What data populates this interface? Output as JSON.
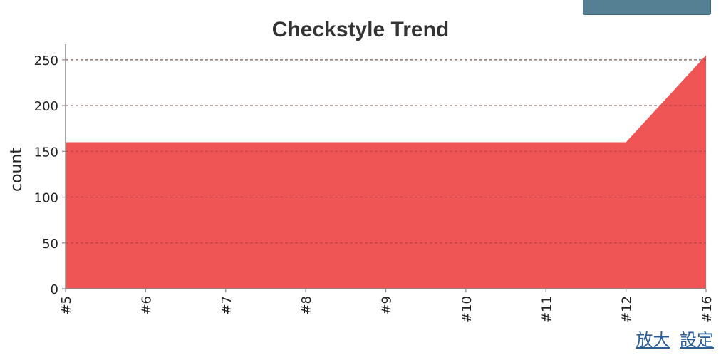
{
  "header": {
    "button_label": ""
  },
  "chart_data": {
    "type": "area",
    "title": "Checkstyle Trend",
    "xlabel": "",
    "ylabel": "count",
    "categories": [
      "#5",
      "#6",
      "#7",
      "#8",
      "#9",
      "#10",
      "#11",
      "#12",
      "#16"
    ],
    "series": [
      {
        "name": "count",
        "values": [
          160,
          160,
          160,
          160,
          160,
          160,
          160,
          160,
          255
        ],
        "color": "#f05555"
      }
    ],
    "ylim": [
      0,
      267
    ],
    "yticks": [
      0,
      50,
      100,
      150,
      200,
      250
    ],
    "grid": true
  },
  "links": {
    "zoom": "放大",
    "settings": "設定"
  },
  "colors": {
    "area_fill": "#f05555",
    "link": "#2a5d95",
    "grid": "#888888",
    "button": "#557f93"
  }
}
